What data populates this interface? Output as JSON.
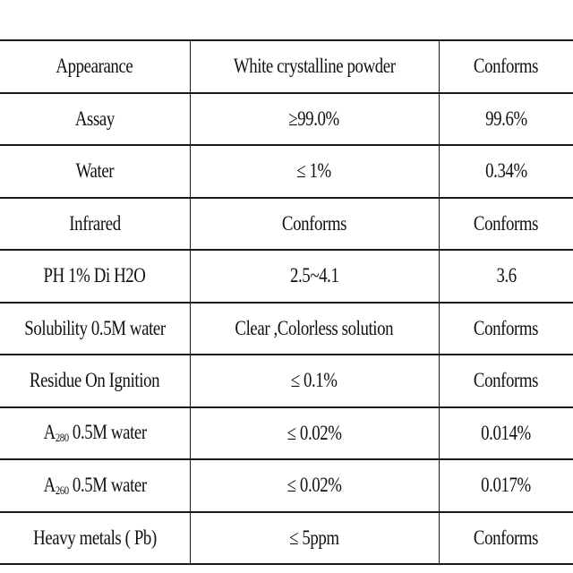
{
  "table": {
    "rows": [
      {
        "item": "Appearance",
        "spec": "White crystalline powder",
        "result": "Conforms"
      },
      {
        "item": "Assay",
        "spec": "≥99.0%",
        "result": "99.6%"
      },
      {
        "item": "Water",
        "spec": "≤ 1%",
        "result": "0.34%"
      },
      {
        "item": "Infrared",
        "spec": "Conforms",
        "result": "Conforms"
      },
      {
        "item": "PH 1% Di H2O",
        "spec": "2.5~4.1",
        "result": "3.6"
      },
      {
        "item": "Solubility 0.5M water",
        "spec": "Clear ,Colorless solution",
        "result": "Conforms"
      },
      {
        "item": "Residue On Ignition",
        "spec": "≤ 0.1%",
        "result": "Conforms"
      },
      {
        "item_prefix": "A",
        "item_sub": "280",
        "item_suffix": " 0.5M water",
        "spec": "≤ 0.02%",
        "result": "0.014%"
      },
      {
        "item_prefix": "A",
        "item_sub": "260",
        "item_suffix": " 0.5M water",
        "spec": "≤ 0.02%",
        "result": "0.017%"
      },
      {
        "item": "Heavy metals ( Pb)",
        "spec": "≤ 5ppm",
        "result": "Conforms"
      }
    ]
  }
}
